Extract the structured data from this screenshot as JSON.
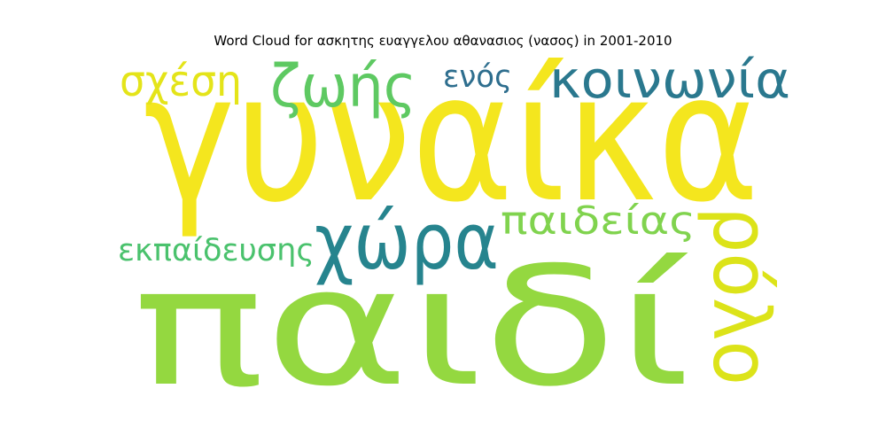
{
  "chart_data": {
    "type": "wordcloud",
    "title": "Word Cloud for ασκητης ευαγγελου αθανασιος (νασος) in 2001-2010",
    "words": [
      {
        "text": "γυναίκα",
        "rank": 1,
        "color": "#f4e61e"
      },
      {
        "text": "παιδί",
        "rank": 2,
        "color": "#94d840"
      },
      {
        "text": "χώρα",
        "rank": 3,
        "color": "#26848e"
      },
      {
        "text": "ρόλο",
        "rank": 4,
        "color": "#dce319"
      },
      {
        "text": "ζωής",
        "rank": 5,
        "color": "#5ec962"
      },
      {
        "text": "κοινωνία",
        "rank": 6,
        "color": "#2a788e"
      },
      {
        "text": "παιδείας",
        "rank": 7,
        "color": "#80d34e"
      },
      {
        "text": "σχέση",
        "rank": 8,
        "color": "#e4e419"
      },
      {
        "text": "εκπαίδευσης",
        "rank": 9,
        "color": "#4ac26d"
      },
      {
        "text": "ενός",
        "rank": 10,
        "color": "#2e6e8e"
      }
    ]
  }
}
